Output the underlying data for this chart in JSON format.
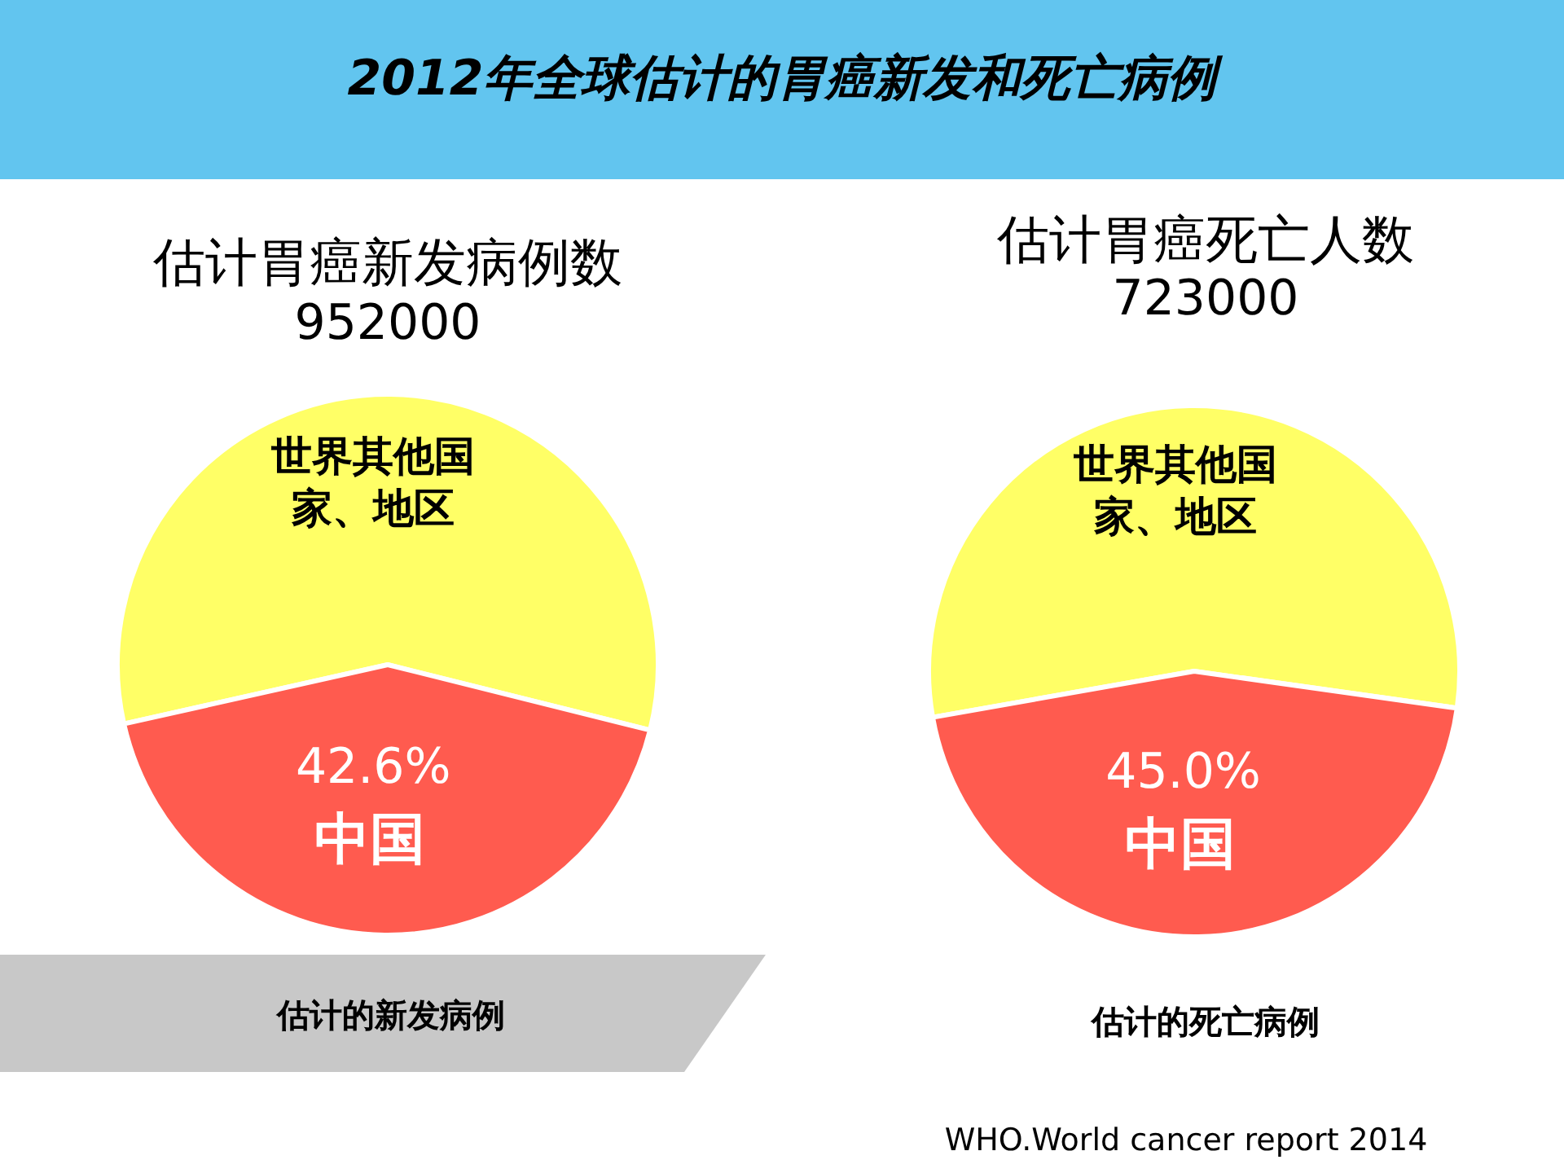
{
  "chart_data": [
    {
      "type": "pie",
      "title": "估计胃癌新发病例数",
      "subtitle": "952000",
      "categories": [
        "世界其他国家、地区",
        "中国"
      ],
      "values": [
        57.4,
        42.6
      ],
      "colors": [
        "#ffff66",
        "#ff5b4f"
      ],
      "value_labels": [
        null,
        "42.6%"
      ],
      "annotations": [
        "2012年全球估计的胃癌新发和死亡病例",
        "估计的新发病例"
      ]
    },
    {
      "type": "pie",
      "title": "估计胃癌死亡人数",
      "subtitle": "723000",
      "categories": [
        "世界其他国家、地区",
        "中国"
      ],
      "values": [
        55.0,
        45.0
      ],
      "colors": [
        "#ffff66",
        "#ff5b4f"
      ],
      "value_labels": [
        null,
        "45.0%"
      ],
      "annotations": [
        "估计的死亡病例",
        "WHO.World cancer report 2014"
      ]
    }
  ]
}
